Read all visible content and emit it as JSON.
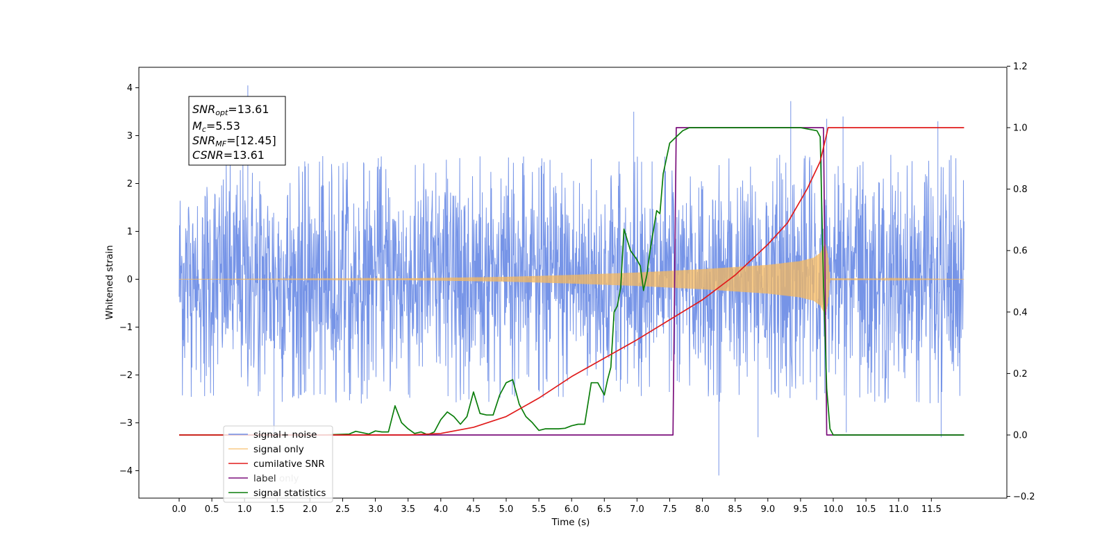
{
  "chart_data": {
    "type": "line",
    "xlabel": "Time (s)",
    "ylabel": "Whitened strain",
    "xlim": [
      -0.6,
      12.6
    ],
    "ylim": [
      -4.5,
      4.4
    ],
    "y2lim": [
      -0.2,
      1.2
    ],
    "x_ticks": [
      "0.0",
      "0.5",
      "1.0",
      "1.5",
      "2.0",
      "2.5",
      "3.0",
      "3.5",
      "4.0",
      "4.5",
      "5.0",
      "5.5",
      "6.0",
      "6.5",
      "7.0",
      "7.5",
      "8.0",
      "8.5",
      "9.0",
      "9.5",
      "10.0",
      "10.5",
      "11.0",
      "11.5"
    ],
    "y_ticks": [
      "4",
      "3",
      "2",
      "1",
      "0",
      "−1",
      "−2",
      "−3",
      "−4"
    ],
    "y2_ticks": [
      "1.2",
      "1.0",
      "0.8",
      "0.6",
      "0.4",
      "0.2",
      "0.0",
      "−0.2"
    ],
    "legend_position": "lower-left",
    "stats_box": {
      "snr_opt_main": "SNR",
      "snr_opt_sub": "opt",
      "snr_opt_val": "=13.61",
      "mc_main": "M",
      "mc_sub": "c",
      "mc_val": "=5.53",
      "snr_mf_main": "SNR",
      "snr_mf_sub": "MF",
      "snr_mf_val": "=[12.45]",
      "csnr_main": "CSNR",
      "csnr_val": "=13.61"
    },
    "series": [
      {
        "name": "signal+ noise",
        "axis": "left",
        "color": "#6f8ee6",
        "style": "noise",
        "x_range": [
          0.0,
          12.0
        ],
        "typical_amplitude": 1.9,
        "peaks": [
          [
            1.05,
            4.05
          ],
          [
            6.95,
            3.5
          ],
          [
            9.35,
            3.72
          ],
          [
            10.15,
            3.4
          ],
          [
            9.9,
            3.35
          ],
          [
            11.6,
            3.3
          ],
          [
            8.25,
            -4.1
          ],
          [
            1.45,
            -3.3
          ],
          [
            10.2,
            -3.2
          ],
          [
            8.85,
            -3.3
          ],
          [
            11.65,
            -3.3
          ]
        ]
      },
      {
        "name": "signal only",
        "axis": "left",
        "color": "#f5b85e",
        "style": "chirp",
        "x_range": [
          0.0,
          12.0
        ],
        "envelope": [
          [
            0.0,
            0.0
          ],
          [
            3.0,
            0.01
          ],
          [
            5.0,
            0.05
          ],
          [
            6.0,
            0.09
          ],
          [
            7.0,
            0.14
          ],
          [
            8.0,
            0.21
          ],
          [
            9.0,
            0.3
          ],
          [
            9.5,
            0.38
          ],
          [
            9.7,
            0.45
          ],
          [
            9.8,
            0.55
          ],
          [
            9.88,
            0.75
          ],
          [
            9.92,
            0.5
          ],
          [
            9.95,
            0.02
          ],
          [
            12.0,
            0.0
          ]
        ]
      },
      {
        "name": "cumilative SNR",
        "axis": "right",
        "color": "#e01b1b",
        "x": [
          0.0,
          3.5,
          4.0,
          4.5,
          5.0,
          5.5,
          6.0,
          6.5,
          7.0,
          7.5,
          8.0,
          8.5,
          9.0,
          9.3,
          9.6,
          9.8,
          9.9,
          9.92,
          12.0
        ],
        "values": [
          0.0,
          0.0,
          0.005,
          0.025,
          0.06,
          0.12,
          0.19,
          0.25,
          0.31,
          0.375,
          0.44,
          0.52,
          0.62,
          0.69,
          0.8,
          0.89,
          0.98,
          1.0,
          1.0
        ]
      },
      {
        "name": "label",
        "axis": "right",
        "color": "#7b0e7b",
        "x": [
          0.0,
          7.55,
          7.6,
          9.85,
          9.9,
          12.0
        ],
        "values": [
          0.0,
          0.0,
          1.0,
          1.0,
          0.0,
          0.0
        ]
      },
      {
        "name": "label only",
        "axis": "right",
        "color": "#7b0e7b",
        "legend_only": true
      },
      {
        "name": "signal statistics",
        "axis": "right",
        "color": "#0a7d0a",
        "x": [
          0.0,
          2.2,
          2.6,
          2.7,
          2.9,
          3.0,
          3.1,
          3.2,
          3.3,
          3.4,
          3.5,
          3.6,
          3.7,
          3.8,
          3.9,
          4.0,
          4.1,
          4.2,
          4.3,
          4.4,
          4.5,
          4.6,
          4.7,
          4.8,
          4.9,
          5.0,
          5.1,
          5.2,
          5.3,
          5.4,
          5.5,
          5.6,
          5.7,
          5.8,
          5.9,
          6.0,
          6.1,
          6.2,
          6.3,
          6.4,
          6.5,
          6.55,
          6.6,
          6.65,
          6.7,
          6.75,
          6.8,
          6.9,
          7.0,
          7.05,
          7.1,
          7.15,
          7.2,
          7.3,
          7.35,
          7.4,
          7.45,
          7.5,
          7.6,
          7.7,
          7.8,
          8.0,
          8.5,
          9.0,
          9.5,
          9.75,
          9.8,
          9.85,
          9.9,
          9.95,
          10.0,
          10.05,
          12.0
        ],
        "values": [
          0.0,
          0.0,
          0.003,
          0.012,
          0.003,
          0.013,
          0.01,
          0.01,
          0.095,
          0.04,
          0.02,
          0.005,
          0.01,
          0.001,
          0.01,
          0.05,
          0.075,
          0.06,
          0.035,
          0.06,
          0.14,
          0.07,
          0.065,
          0.065,
          0.13,
          0.17,
          0.18,
          0.1,
          0.06,
          0.04,
          0.015,
          0.02,
          0.02,
          0.02,
          0.022,
          0.03,
          0.035,
          0.035,
          0.17,
          0.17,
          0.13,
          0.18,
          0.22,
          0.4,
          0.42,
          0.48,
          0.67,
          0.6,
          0.57,
          0.55,
          0.47,
          0.52,
          0.6,
          0.73,
          0.72,
          0.85,
          0.9,
          0.95,
          0.97,
          0.99,
          1.0,
          1.0,
          1.0,
          1.0,
          1.0,
          0.99,
          0.97,
          0.5,
          0.15,
          0.02,
          0.0,
          0.0,
          0.0
        ]
      }
    ]
  }
}
